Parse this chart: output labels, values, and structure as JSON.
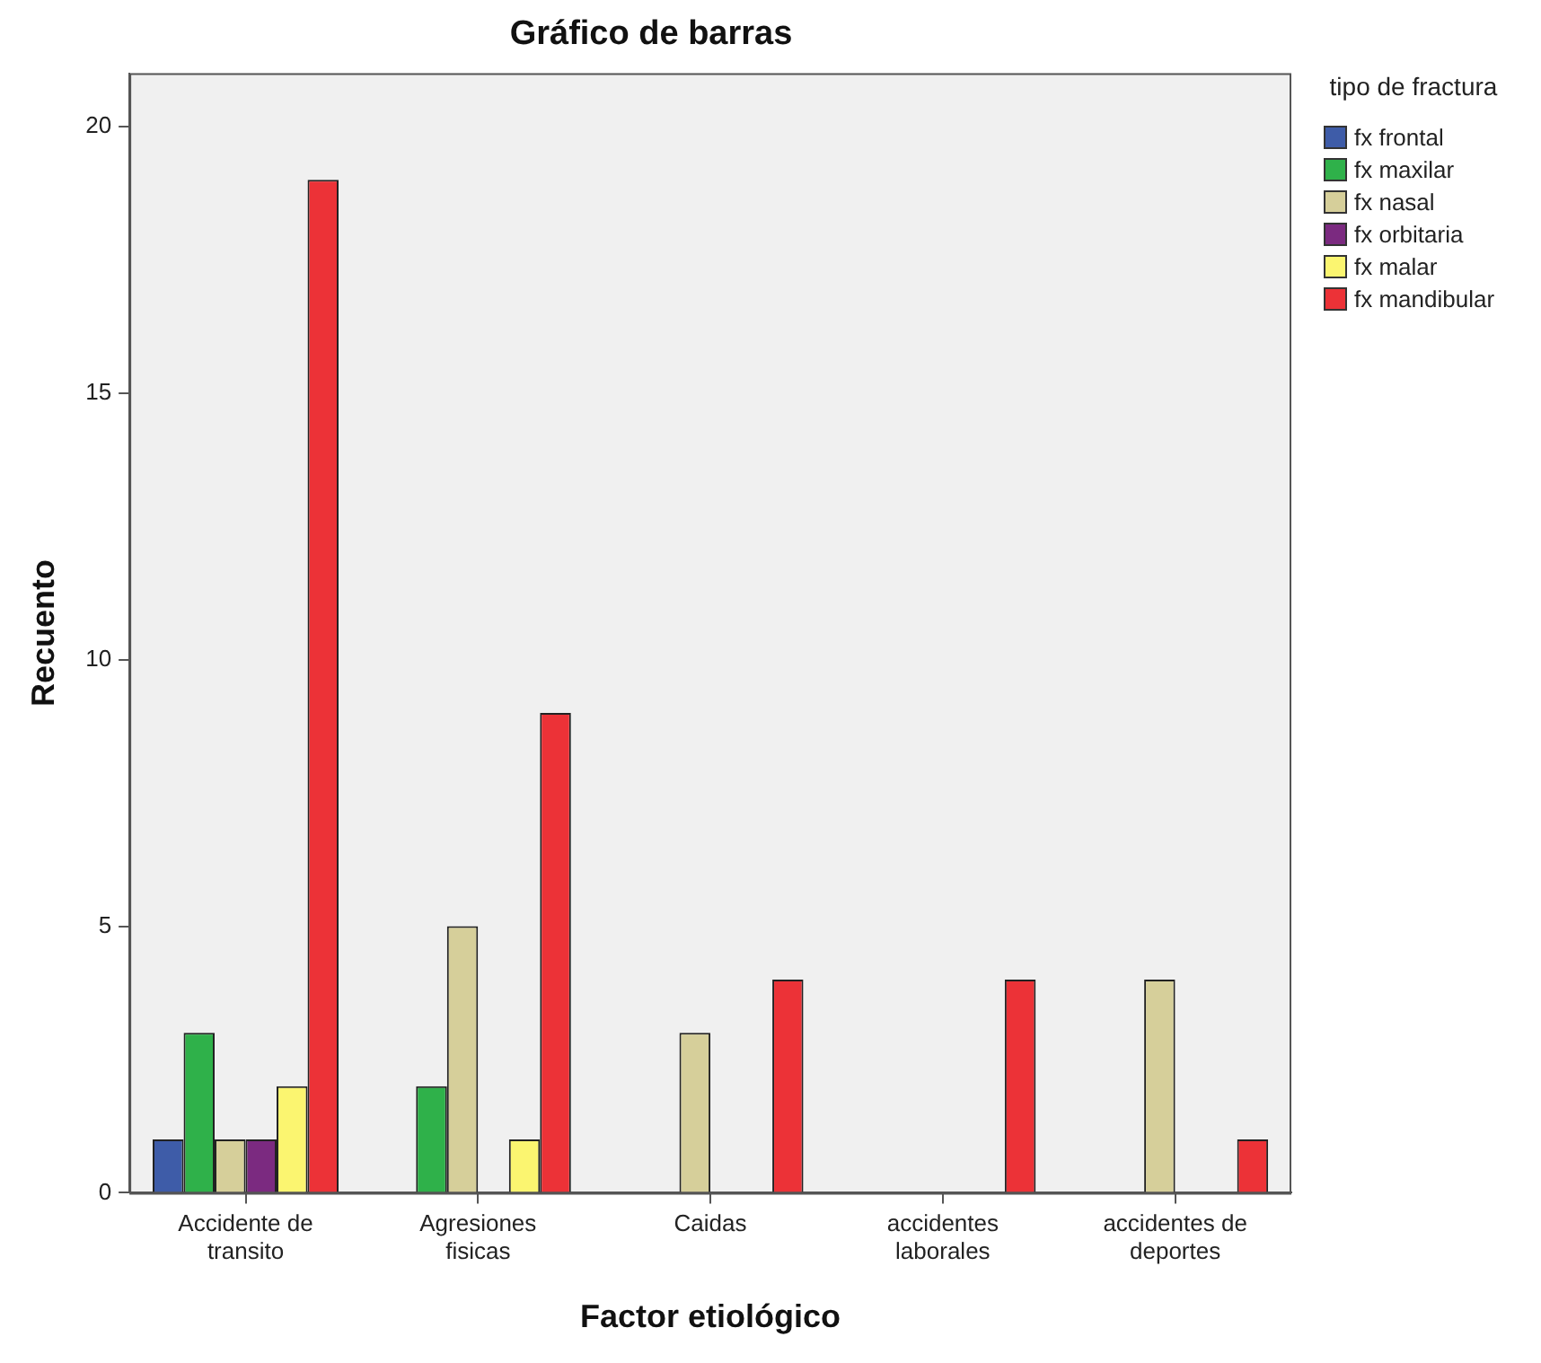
{
  "chart_data": {
    "type": "bar",
    "title": "Gráfico de barras",
    "xlabel": "Factor etiológico",
    "ylabel": "Recuento",
    "legend_title": "tipo de fractura",
    "categories": [
      "Accidente de transito",
      "Agresiones fisicas",
      "Caidas",
      "accidentes laborales",
      "accidentes de deportes"
    ],
    "series": [
      {
        "name": "fx frontal",
        "color": "#3e5ca8",
        "values": [
          1,
          0,
          0,
          0,
          0
        ]
      },
      {
        "name": "fx maxilar",
        "color": "#2fb14a",
        "values": [
          3,
          2,
          0,
          0,
          0
        ]
      },
      {
        "name": "fx nasal",
        "color": "#d6cf9a",
        "values": [
          1,
          5,
          3,
          0,
          4
        ]
      },
      {
        "name": "fx orbitaria",
        "color": "#7b2a80",
        "values": [
          1,
          0,
          0,
          0,
          0
        ]
      },
      {
        "name": "fx malar",
        "color": "#fbf570",
        "values": [
          2,
          1,
          0,
          0,
          0
        ]
      },
      {
        "name": "fx mandibular",
        "color": "#ec3237",
        "values": [
          19,
          9,
          4,
          4,
          1
        ]
      }
    ],
    "ylim": [
      0,
      21
    ],
    "yticks": [
      0,
      5,
      10,
      15,
      20
    ],
    "grid": false,
    "legend": "right"
  }
}
